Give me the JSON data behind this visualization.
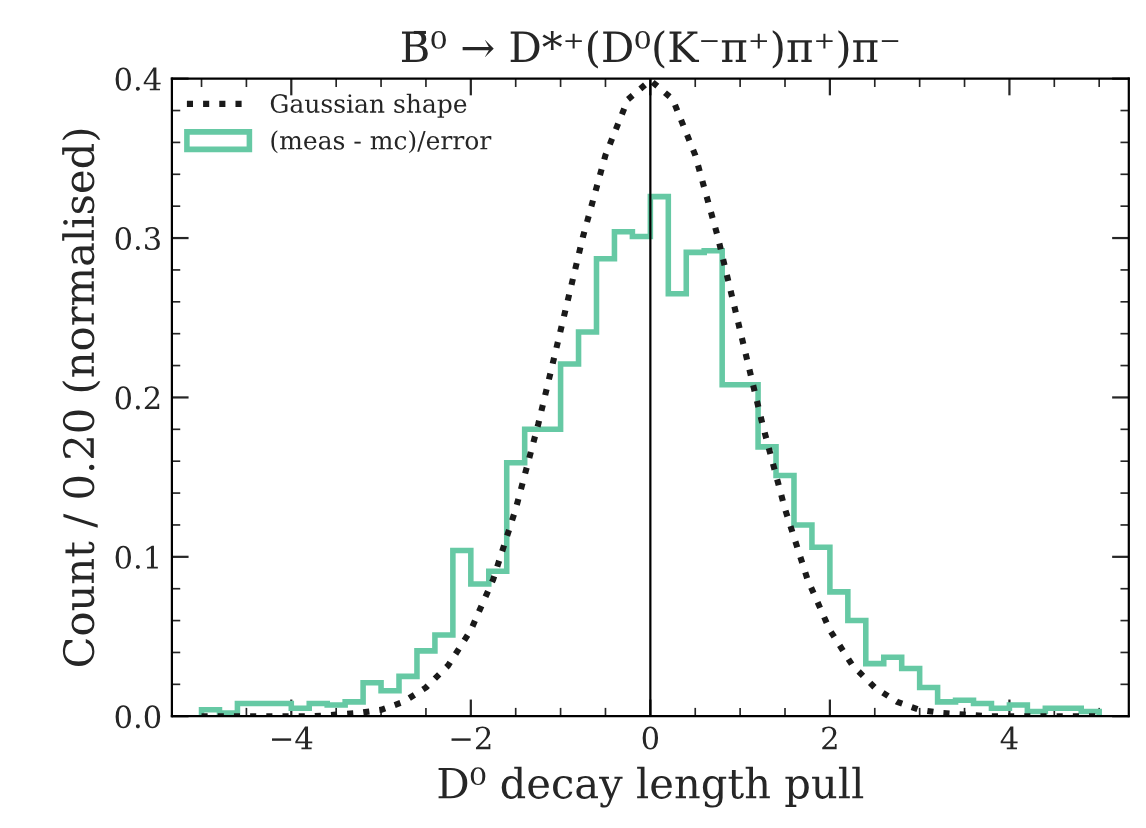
{
  "chart_data": {
    "type": "histogram",
    "title": "B̄⁰ → D*⁺(D⁰(K⁻π⁺)π⁺)π⁻",
    "xlabel": "D⁰ decay length pull",
    "ylabel": "Count / 0.20 (normalised)",
    "bins": [
      -5.0,
      -4.8,
      -4.6,
      -4.4,
      -4.2,
      -4.0,
      -3.8,
      -3.6,
      -3.4,
      -3.2,
      -3.0,
      -2.8,
      -2.6,
      -2.4,
      -2.2,
      -2.0,
      -1.8,
      -1.6,
      -1.4,
      -1.2,
      -1.0,
      -0.8,
      -0.6,
      -0.4,
      -0.2,
      0.0,
      0.2,
      0.4,
      0.6,
      0.8,
      1.0,
      1.2,
      1.4,
      1.6,
      1.8,
      2.0,
      2.2,
      2.4,
      2.6,
      2.8,
      3.0,
      3.2,
      3.4,
      3.6,
      3.8,
      4.0,
      4.2,
      4.4,
      4.6,
      4.8,
      5.0
    ],
    "series": [
      {
        "name": "Gaussian shape",
        "type": "line",
        "line_style": "dotted",
        "color": "#1a1a1a",
        "x": [
          -5,
          -4.5,
          -4,
          -3.75,
          -3.5,
          -3.25,
          -3,
          -2.75,
          -2.5,
          -2.25,
          -2,
          -1.75,
          -1.5,
          -1.25,
          -1,
          -0.75,
          -0.5,
          -0.25,
          0,
          0.25,
          0.5,
          0.75,
          1,
          1.25,
          1.5,
          1.75,
          2,
          2.25,
          2.5,
          2.75,
          3,
          3.25,
          3.5,
          3.75,
          4,
          4.5,
          5
        ],
        "values": [
          0,
          0,
          0,
          0,
          0.001,
          0.002,
          0.004,
          0.009,
          0.018,
          0.032,
          0.054,
          0.086,
          0.13,
          0.183,
          0.242,
          0.301,
          0.352,
          0.387,
          0.399,
          0.387,
          0.352,
          0.301,
          0.242,
          0.183,
          0.13,
          0.086,
          0.054,
          0.032,
          0.018,
          0.009,
          0.004,
          0.002,
          0.001,
          0,
          0,
          0,
          0
        ]
      },
      {
        "name": "(meas - mc)/error",
        "color": "#66c9a4",
        "values": [
          0.004,
          0.002,
          0.008,
          0.008,
          0.008,
          0.005,
          0.008,
          0.007,
          0.009,
          0.021,
          0.016,
          0.025,
          0.041,
          0.051,
          0.104,
          0.083,
          0.091,
          0.159,
          0.18,
          0.18,
          0.221,
          0.241,
          0.287,
          0.304,
          0.301,
          0.326,
          0.265,
          0.291,
          0.292,
          0.208,
          0.208,
          0.169,
          0.151,
          0.12,
          0.106,
          0.078,
          0.06,
          0.033,
          0.037,
          0.03,
          0.018,
          0.009,
          0.01,
          0.008,
          0.005,
          0.007,
          0.003,
          0.005,
          0.005,
          0.003
        ]
      }
    ],
    "ref_lines": [
      {
        "axis": "x",
        "value": 0,
        "color": "#000000"
      }
    ],
    "xlim": [
      -5.33,
      5.33
    ],
    "xticks": [
      {
        "value": -4,
        "label": "−4"
      },
      {
        "value": -2,
        "label": "−2"
      },
      0,
      2,
      4
    ],
    "ylim": [
      0,
      0.4
    ],
    "yticks": [
      {
        "value": 0,
        "label": "0.0"
      },
      0.1,
      0.2,
      0.3,
      0.4
    ],
    "grid": false,
    "legend": "top left"
  }
}
